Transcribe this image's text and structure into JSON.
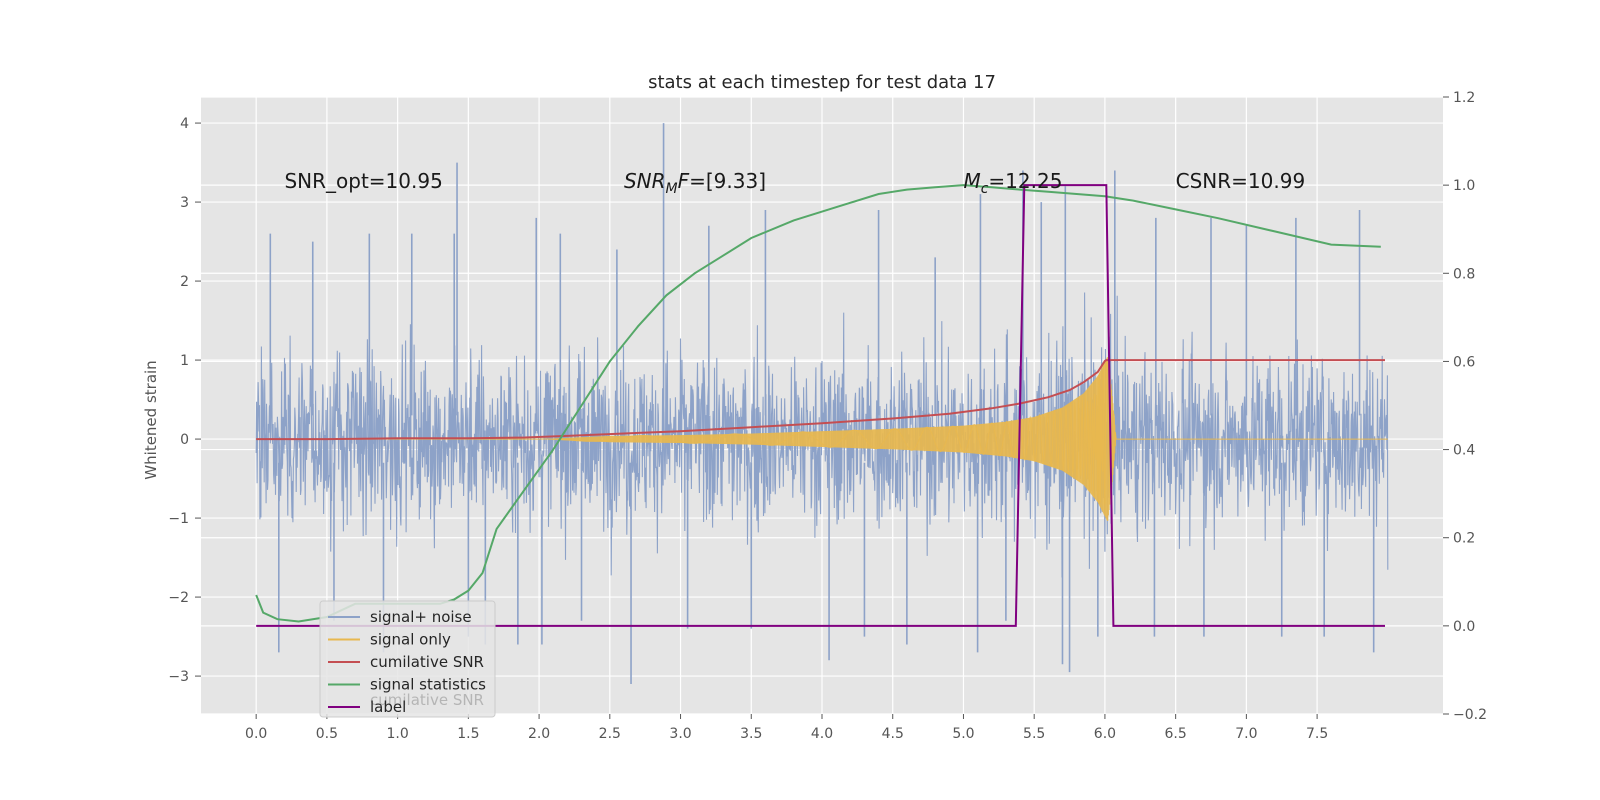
{
  "chart_data": {
    "type": "line",
    "title": "stats at each timestep for test data 17",
    "ylabel": "Whitened strain",
    "xlabel": "",
    "xlim": [
      -0.39,
      8.39
    ],
    "ylim": [
      -3.48,
      4.33
    ],
    "y2lim": [
      -0.2,
      1.2
    ],
    "grid": true,
    "legend_position": "lower-left",
    "x_ticks": [
      "0.0",
      "0.5",
      "1.0",
      "1.5",
      "2.0",
      "2.5",
      "3.0",
      "3.5",
      "4.0",
      "4.5",
      "5.0",
      "5.5",
      "6.0",
      "6.5",
      "7.0",
      "7.5"
    ],
    "y_ticks": [
      "−3",
      "−2",
      "−1",
      "0",
      "1",
      "2",
      "3",
      "4"
    ],
    "y2_ticks": [
      "−0.2",
      "0.0",
      "0.2",
      "0.4",
      "0.6",
      "0.8",
      "1.0",
      "1.2"
    ],
    "annotations": [
      {
        "text": "SNR_opt=10.95",
        "x": 0.2,
        "y": 3.18
      },
      {
        "text": "SNR_MF=[9.33]",
        "prefix": "SNR",
        "sub": "M",
        "suffix": "F=[9.33]",
        "x": 2.6,
        "y": 3.18
      },
      {
        "text": "M_c=12.25",
        "prefix": "M",
        "sub": "c",
        "suffix": "=12.25",
        "x": 5.0,
        "y": 3.18
      },
      {
        "text": "CSNR=10.99",
        "x": 6.5,
        "y": 3.18
      }
    ],
    "legend_overlap_text": "cumilative SNR",
    "series": [
      {
        "name": "signal+ noise",
        "color": "#8da2c8",
        "description": "whitened noise plus signal, amplitude roughly -3 to 4",
        "peaks": [
          [
            0.1,
            2.6
          ],
          [
            0.4,
            2.5
          ],
          [
            0.8,
            2.6
          ],
          [
            1.1,
            2.6
          ],
          [
            1.4,
            2.6
          ],
          [
            1.42,
            3.5
          ],
          [
            1.98,
            2.8
          ],
          [
            2.15,
            2.6
          ],
          [
            2.55,
            2.4
          ],
          [
            2.88,
            4.0
          ],
          [
            3.2,
            2.7
          ],
          [
            3.6,
            2.9
          ],
          [
            4.4,
            2.9
          ],
          [
            4.8,
            2.3
          ],
          [
            5.12,
            3.1
          ],
          [
            5.42,
            3.4
          ],
          [
            5.55,
            3.0
          ],
          [
            5.72,
            3.2
          ],
          [
            6.07,
            3.4
          ],
          [
            6.36,
            2.8
          ],
          [
            6.75,
            2.8
          ],
          [
            7.0,
            2.7
          ],
          [
            7.35,
            2.8
          ],
          [
            7.8,
            2.9
          ]
        ],
        "troughs": [
          [
            0.16,
            -2.7
          ],
          [
            0.55,
            -2.3
          ],
          [
            0.9,
            -2.7
          ],
          [
            1.5,
            -2.5
          ],
          [
            1.62,
            -2.6
          ],
          [
            1.85,
            -2.6
          ],
          [
            2.02,
            -2.6
          ],
          [
            2.3,
            -2.3
          ],
          [
            2.65,
            -3.1
          ],
          [
            3.05,
            -2.4
          ],
          [
            3.5,
            -2.4
          ],
          [
            4.05,
            -2.8
          ],
          [
            4.3,
            -2.5
          ],
          [
            4.6,
            -2.6
          ],
          [
            5.1,
            -2.7
          ],
          [
            5.3,
            -2.3
          ],
          [
            5.7,
            -2.85
          ],
          [
            5.75,
            -2.95
          ],
          [
            5.95,
            -2.5
          ],
          [
            6.35,
            -2.5
          ],
          [
            6.7,
            -2.5
          ],
          [
            7.25,
            -2.5
          ],
          [
            7.55,
            -2.5
          ],
          [
            7.9,
            -2.7
          ]
        ]
      },
      {
        "name": "signal only",
        "color": "#e8b84f",
        "description": "chirp growing in amplitude until merger near t=6.0",
        "envelope": [
          [
            2.0,
            0.0
          ],
          [
            2.5,
            0.04
          ],
          [
            3.0,
            0.05
          ],
          [
            3.5,
            0.07
          ],
          [
            4.0,
            0.1
          ],
          [
            4.5,
            0.13
          ],
          [
            5.0,
            0.17
          ],
          [
            5.3,
            0.22
          ],
          [
            5.5,
            0.28
          ],
          [
            5.7,
            0.4
          ],
          [
            5.85,
            0.58
          ],
          [
            5.95,
            0.8
          ],
          [
            6.02,
            1.05
          ],
          [
            6.05,
            0.6
          ],
          [
            6.08,
            0.0
          ]
        ]
      },
      {
        "name": "cumilative SNR",
        "color": "#c44e52",
        "axis": "left",
        "x": [
          0.0,
          0.5,
          1.0,
          1.5,
          1.9,
          2.2,
          2.6,
          3.0,
          3.5,
          4.0,
          4.5,
          4.9,
          5.2,
          5.4,
          5.6,
          5.75,
          5.85,
          5.95,
          6.0,
          6.01,
          7.98
        ],
        "y": [
          0.0,
          0.0,
          0.01,
          0.01,
          0.02,
          0.04,
          0.07,
          0.1,
          0.15,
          0.2,
          0.26,
          0.32,
          0.39,
          0.45,
          0.53,
          0.62,
          0.72,
          0.85,
          0.99,
          1.0,
          1.0
        ]
      },
      {
        "name": "signal statistics",
        "color": "#55a868",
        "axis": "right",
        "x": [
          0.0,
          0.05,
          0.15,
          0.3,
          0.5,
          0.7,
          0.9,
          1.1,
          1.3,
          1.4,
          1.5,
          1.6,
          1.7,
          1.9,
          2.1,
          2.3,
          2.5,
          2.7,
          2.9,
          3.1,
          3.3,
          3.5,
          3.8,
          4.1,
          4.4,
          4.6,
          4.8,
          5.0,
          5.2,
          5.4,
          5.6,
          5.8,
          6.0,
          6.2,
          6.5,
          6.8,
          7.2,
          7.6,
          7.95
        ],
        "y": [
          0.07,
          0.03,
          0.015,
          0.01,
          0.02,
          0.05,
          0.05,
          0.05,
          0.05,
          0.06,
          0.08,
          0.12,
          0.22,
          0.31,
          0.4,
          0.5,
          0.6,
          0.68,
          0.75,
          0.8,
          0.84,
          0.88,
          0.92,
          0.95,
          0.98,
          0.99,
          0.995,
          1.0,
          0.995,
          0.99,
          0.985,
          0.98,
          0.975,
          0.965,
          0.945,
          0.925,
          0.895,
          0.865,
          0.86
        ]
      },
      {
        "name": "label",
        "color": "#800080",
        "axis": "right",
        "x": [
          0.0,
          5.37,
          5.43,
          6.01,
          6.06,
          7.98
        ],
        "y": [
          0.0,
          0.0,
          1.0,
          1.0,
          0.0,
          0.0
        ]
      }
    ]
  }
}
